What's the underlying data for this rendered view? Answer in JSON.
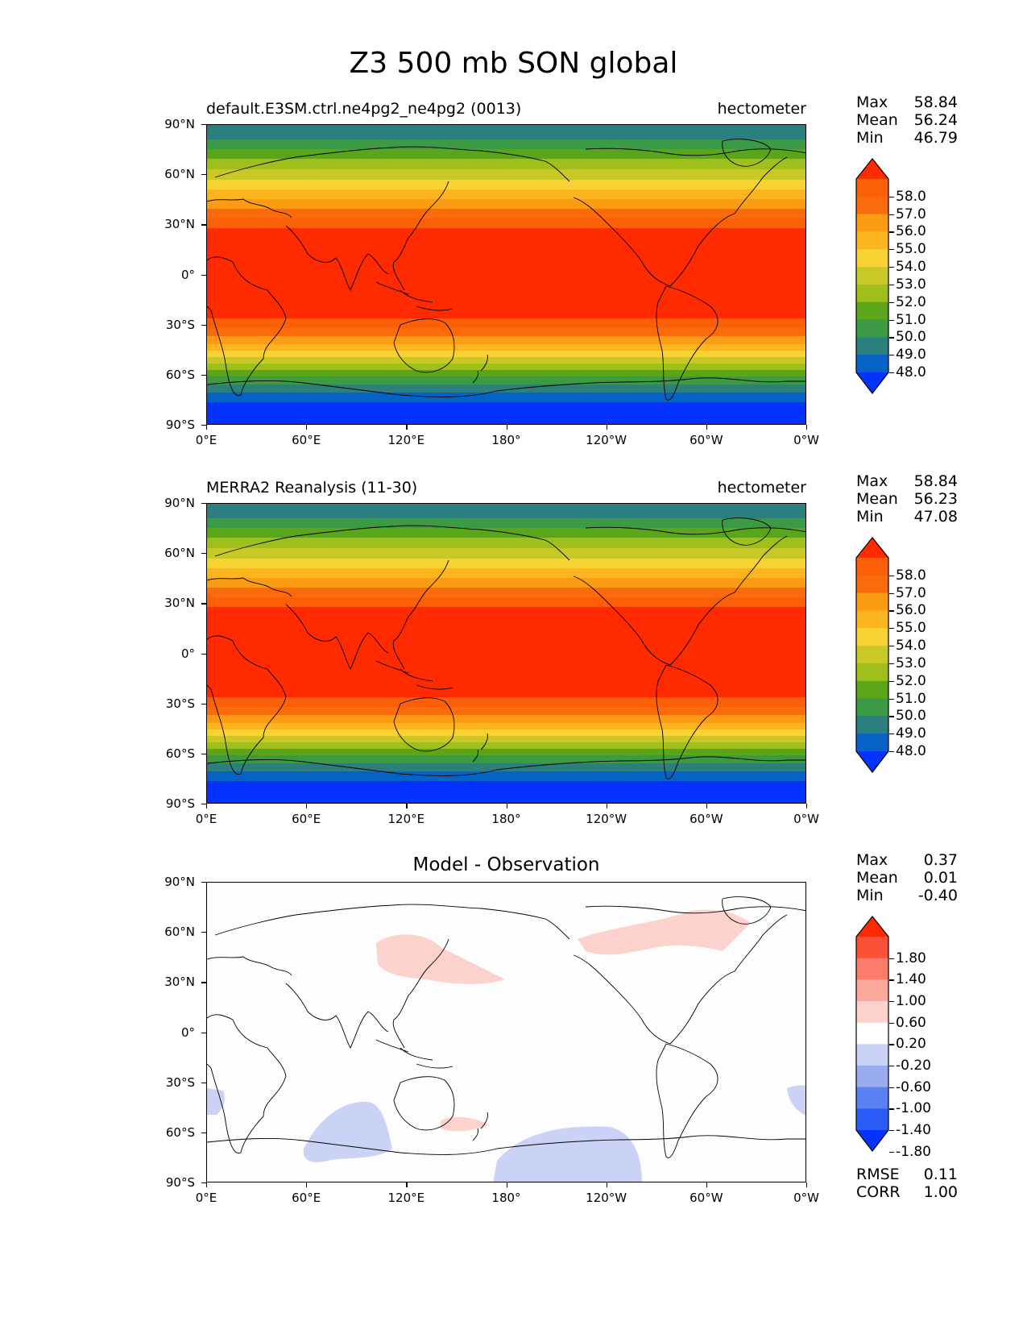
{
  "main_title": "Z3 500 mb SON global",
  "x_ticks": [
    "0°E",
    "60°E",
    "120°E",
    "180°",
    "120°W",
    "60°W",
    "0°W"
  ],
  "y_ticks": [
    "90°N",
    "60°N",
    "30°N",
    "0°",
    "30°S",
    "60°S",
    "90°S"
  ],
  "panels": [
    {
      "title_left": "default.E3SM.ctrl.ne4pg2_ne4pg2 (0013)",
      "title_right": "hectometer",
      "stats": {
        "max_label": "Max",
        "max": "58.84",
        "mean_label": "Mean",
        "mean": "56.24",
        "min_label": "Min",
        "min": "46.79"
      },
      "colorbar_labels": [
        "58.0",
        "57.0",
        "56.0",
        "55.0",
        "54.0",
        "53.0",
        "52.0",
        "51.0",
        "50.0",
        "49.0",
        "48.0"
      ]
    },
    {
      "title_left": "MERRA2 Reanalysis (11-30)",
      "title_right": "hectometer",
      "stats": {
        "max_label": "Max",
        "max": "58.84",
        "mean_label": "Mean",
        "mean": "56.23",
        "min_label": "Min",
        "min": "47.08"
      },
      "colorbar_labels": [
        "58.0",
        "57.0",
        "56.0",
        "55.0",
        "54.0",
        "53.0",
        "52.0",
        "51.0",
        "50.0",
        "49.0",
        "48.0"
      ]
    },
    {
      "title_center": "Model - Observation",
      "stats": {
        "max_label": "Max",
        "max": "0.37",
        "mean_label": "Mean",
        "mean": "0.01",
        "min_label": "Min",
        "min": "-0.40"
      },
      "colorbar_labels": [
        "1.80",
        "1.40",
        "1.00",
        "0.60",
        "0.20",
        "-0.20",
        "-0.60",
        "-1.00",
        "-1.40",
        "-1.80"
      ],
      "metrics": {
        "rmse_label": "RMSE",
        "rmse": "0.11",
        "corr_label": "CORR",
        "corr": "1.00"
      }
    }
  ],
  "colors": {
    "field_scale": [
      "#0433ff",
      "#0563c8",
      "#2b7f7e",
      "#3c9a45",
      "#5aa519",
      "#9fbf1c",
      "#c8c827",
      "#f7d232",
      "#fcb51f",
      "#fc9b14",
      "#fb6b0c",
      "#fb5f07",
      "#ff2a00"
    ],
    "diff_scale": [
      "#0433ff",
      "#2c5cf8",
      "#5b80f3",
      "#99acef",
      "#cad3f5",
      "#ffffff",
      "#fdd2cc",
      "#fca89b",
      "#fb7c6a",
      "#f95037",
      "#ff2a00"
    ]
  }
}
